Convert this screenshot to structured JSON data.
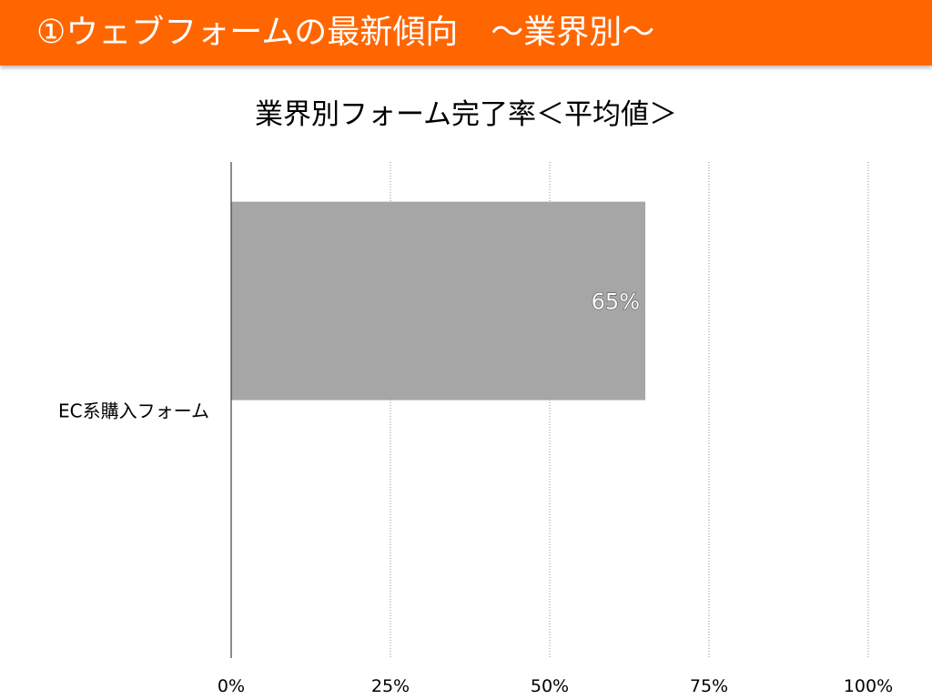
{
  "slide": {
    "title": "①ウェブフォームの最新傾向　～業界別～",
    "header_color": "#ff6600"
  },
  "chart_data": {
    "type": "bar",
    "orientation": "horizontal",
    "title": "業界別フォーム完了率＜平均値＞",
    "categories": [
      "EC系購入フォーム"
    ],
    "values": [
      0.65
    ],
    "value_labels": [
      "65%"
    ],
    "xlim": [
      0,
      1
    ],
    "x_ticks": [
      0,
      0.25,
      0.5,
      0.75,
      1
    ],
    "x_tick_labels": [
      "0%",
      "25%",
      "50%",
      "75%",
      "100%"
    ],
    "grid": "vertical dotted",
    "legend": "none",
    "bar_color": "#a6a6a6"
  }
}
